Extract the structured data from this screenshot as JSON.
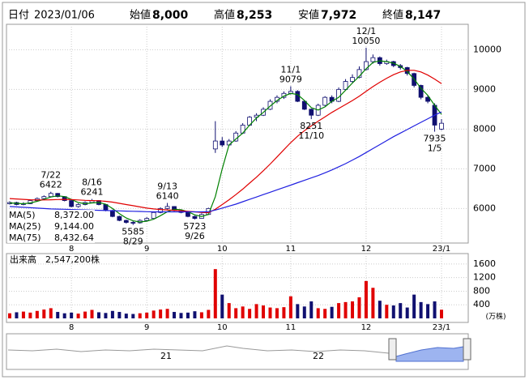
{
  "header": {
    "date_label": "日付",
    "date": "2023/01/06",
    "items": [
      {
        "label": "始値",
        "value": "8,000",
        "color": "#000000"
      },
      {
        "label": "高値",
        "value": "8,253",
        "color": "#e00000"
      },
      {
        "label": "安値",
        "value": "7,972",
        "color": "#008000"
      },
      {
        "label": "終値",
        "value": "8,147",
        "color": "#000000"
      }
    ]
  },
  "chart_data": {
    "type": "candlestick",
    "up_color": "#ffffff",
    "down_color": "#101070",
    "edge_color": "#101070",
    "categories": [
      null,
      null,
      null,
      null,
      null,
      null,
      null,
      null,
      null,
      "8",
      null,
      null,
      null,
      null,
      null,
      null,
      null,
      null,
      null,
      null,
      "9",
      null,
      null,
      null,
      null,
      null,
      null,
      null,
      null,
      null,
      null,
      "10",
      null,
      null,
      null,
      null,
      null,
      null,
      null,
      null,
      null,
      "11",
      null,
      null,
      null,
      null,
      null,
      null,
      null,
      null,
      null,
      null,
      "12",
      null,
      null,
      null,
      null,
      null,
      null,
      null,
      null,
      null,
      null,
      "23/1"
    ],
    "candles": [
      [
        6120,
        6180,
        6100,
        6150
      ],
      [
        6150,
        6170,
        6080,
        6100
      ],
      [
        6100,
        6160,
        6080,
        6120
      ],
      [
        6120,
        6230,
        6110,
        6200
      ],
      [
        6200,
        6280,
        6180,
        6250
      ],
      [
        6250,
        6330,
        6230,
        6300
      ],
      [
        6300,
        6422,
        6290,
        6380
      ],
      [
        6380,
        6390,
        6280,
        6300
      ],
      [
        6300,
        6310,
        6180,
        6200
      ],
      [
        6200,
        6210,
        6030,
        6050
      ],
      [
        6050,
        6130,
        6020,
        6100
      ],
      [
        6100,
        6180,
        6080,
        6150
      ],
      [
        6150,
        6241,
        6140,
        6200
      ],
      [
        6200,
        6210,
        6080,
        6100
      ],
      [
        6100,
        6110,
        5930,
        5950
      ],
      [
        5950,
        5970,
        5780,
        5800
      ],
      [
        5800,
        5820,
        5680,
        5700
      ],
      [
        5700,
        5720,
        5620,
        5650
      ],
      [
        5650,
        5690,
        5585,
        5640
      ],
      [
        5640,
        5730,
        5620,
        5700
      ],
      [
        5700,
        5780,
        5680,
        5750
      ],
      [
        5750,
        5920,
        5740,
        5900
      ],
      [
        5900,
        6030,
        5880,
        6000
      ],
      [
        6000,
        6140,
        5980,
        6050
      ],
      [
        6050,
        6060,
        5930,
        5950
      ],
      [
        5950,
        5970,
        5880,
        5900
      ],
      [
        5900,
        5910,
        5780,
        5800
      ],
      [
        5800,
        5820,
        5723,
        5750
      ],
      [
        5750,
        5880,
        5740,
        5850
      ],
      [
        5850,
        6020,
        5840,
        6000
      ],
      [
        7500,
        8200,
        7400,
        7700
      ],
      [
        7700,
        7800,
        7550,
        7600
      ],
      [
        7600,
        7750,
        7580,
        7700
      ],
      [
        7700,
        7950,
        7680,
        7900
      ],
      [
        7900,
        8150,
        7880,
        8100
      ],
      [
        8100,
        8330,
        8080,
        8300
      ],
      [
        8300,
        8400,
        8200,
        8350
      ],
      [
        8350,
        8550,
        8330,
        8500
      ],
      [
        8500,
        8750,
        8480,
        8700
      ],
      [
        8700,
        8850,
        8650,
        8800
      ],
      [
        8800,
        8950,
        8760,
        8900
      ],
      [
        8900,
        9079,
        8870,
        8950
      ],
      [
        8950,
        8980,
        8680,
        8700
      ],
      [
        8700,
        8720,
        8480,
        8500
      ],
      [
        8500,
        8520,
        8251,
        8350
      ],
      [
        8350,
        8640,
        8330,
        8600
      ],
      [
        8600,
        8830,
        8580,
        8800
      ],
      [
        8800,
        8850,
        8650,
        8700
      ],
      [
        8700,
        9050,
        8680,
        9000
      ],
      [
        9000,
        9260,
        8980,
        9200
      ],
      [
        9200,
        9380,
        9150,
        9300
      ],
      [
        9300,
        9580,
        9280,
        9500
      ],
      [
        9500,
        10050,
        9480,
        9700
      ],
      [
        9700,
        9880,
        9650,
        9800
      ],
      [
        9800,
        9830,
        9600,
        9650
      ],
      [
        9650,
        9750,
        9620,
        9700
      ],
      [
        9700,
        9720,
        9560,
        9600
      ],
      [
        9600,
        9640,
        9500,
        9550
      ],
      [
        9550,
        9570,
        9350,
        9400
      ],
      [
        9400,
        9420,
        9050,
        9100
      ],
      [
        9100,
        9120,
        8750,
        8800
      ],
      [
        8800,
        8850,
        8650,
        8700
      ],
      [
        8600,
        8650,
        7935,
        8100
      ],
      [
        8000,
        8253,
        7972,
        8147
      ]
    ],
    "series": [
      {
        "name": "MA(5)",
        "color": "#008000",
        "last": "8,372.00",
        "values": [
          6140,
          6130,
          6120,
          6140,
          6180,
          6230,
          6290,
          6320,
          6300,
          6230,
          6150,
          6120,
          6140,
          6150,
          6110,
          6000,
          5870,
          5760,
          5690,
          5660,
          5680,
          5730,
          5820,
          5920,
          5980,
          5970,
          5920,
          5840,
          5800,
          5850,
          6300,
          7000,
          7600,
          7750,
          7900,
          8100,
          8280,
          8420,
          8580,
          8720,
          8830,
          8900,
          8870,
          8720,
          8540,
          8480,
          8560,
          8700,
          8800,
          8980,
          9160,
          9330,
          9520,
          9680,
          9720,
          9700,
          9660,
          9580,
          9450,
          9260,
          9030,
          8850,
          8600,
          8372
        ]
      },
      {
        "name": "MA(25)",
        "color": "#e00000",
        "last": "9,144.00",
        "values": [
          6250,
          6240,
          6230,
          6220,
          6215,
          6215,
          6220,
          6225,
          6230,
          6225,
          6215,
          6205,
          6200,
          6195,
          6180,
          6160,
          6130,
          6100,
          6070,
          6040,
          6010,
          5990,
          5975,
          5965,
          5955,
          5945,
          5930,
          5915,
          5900,
          5895,
          5980,
          6100,
          6220,
          6350,
          6490,
          6640,
          6790,
          6950,
          7120,
          7300,
          7480,
          7660,
          7820,
          7960,
          8080,
          8200,
          8310,
          8420,
          8520,
          8620,
          8720,
          8830,
          8950,
          9070,
          9180,
          9280,
          9370,
          9440,
          9480,
          9480,
          9440,
          9360,
          9260,
          9144
        ]
      },
      {
        "name": "MA(75)",
        "color": "#2020e0",
        "last": "8,432.64",
        "values": [
          6050,
          6040,
          6030,
          6020,
          6010,
          6000,
          5990,
          5985,
          5980,
          5975,
          5970,
          5965,
          5960,
          5955,
          5950,
          5945,
          5940,
          5935,
          5930,
          5925,
          5920,
          5915,
          5915,
          5915,
          5915,
          5915,
          5915,
          5915,
          5915,
          5920,
          5960,
          6010,
          6060,
          6110,
          6170,
          6230,
          6290,
          6350,
          6410,
          6470,
          6530,
          6590,
          6650,
          6710,
          6770,
          6830,
          6900,
          6970,
          7050,
          7130,
          7220,
          7310,
          7410,
          7510,
          7610,
          7710,
          7810,
          7900,
          7990,
          8080,
          8170,
          8260,
          8350,
          8432.64
        ]
      }
    ],
    "ylim": [
      5130,
      10640
    ],
    "yticks": [
      6000,
      7000,
      8000,
      9000,
      10000
    ],
    "annotations": [
      {
        "date": "7/22",
        "value": 6422
      },
      {
        "date": "8/16",
        "value": 6241
      },
      {
        "date": "8/29",
        "value": 5585
      },
      {
        "date": "9/13",
        "value": 6140
      },
      {
        "date": "9/26",
        "value": 5723
      },
      {
        "date": "11/1",
        "value": 9079
      },
      {
        "date": "11/10",
        "value": 8251
      },
      {
        "date": "12/1",
        "value": 10050
      },
      {
        "date": "1/5",
        "value": 7935
      }
    ],
    "volume": {
      "title": "出来高　2,547,200株",
      "unit": "(万株)",
      "up_color": "#e00000",
      "down_color": "#101070",
      "values": [
        150,
        180,
        200,
        170,
        220,
        260,
        300,
        190,
        150,
        170,
        140,
        200,
        250,
        180,
        160,
        220,
        190,
        140,
        130,
        150,
        170,
        230,
        260,
        280,
        190,
        160,
        170,
        210,
        180,
        250,
        1450,
        700,
        450,
        300,
        350,
        280,
        420,
        380,
        320,
        300,
        330,
        650,
        420,
        350,
        500,
        300,
        280,
        340,
        450,
        480,
        500,
        620,
        1100,
        900,
        520,
        400,
        380,
        450,
        320,
        700,
        480,
        420,
        500,
        254.72
      ],
      "ylim": [
        0,
        1860
      ],
      "yticks": [
        400,
        800,
        1200,
        1600
      ]
    },
    "navigator": {
      "labels": [
        "21",
        "22"
      ]
    }
  }
}
